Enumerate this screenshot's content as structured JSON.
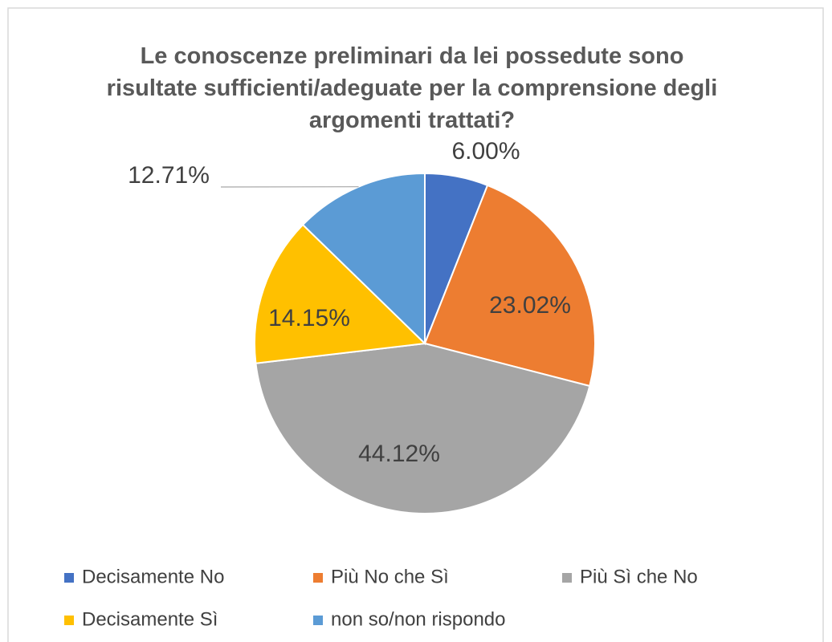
{
  "chart_data": {
    "type": "pie",
    "title": "Le conoscenze preliminari da lei possedute sono risultate sufficienti/adeguate per la comprensione degli argomenti trattati?",
    "categories": [
      "Decisamente No",
      "Più No che Sì",
      "Più Sì che No",
      "Decisamente Sì",
      "non so/non rispondo"
    ],
    "values": [
      6.0,
      23.02,
      44.12,
      14.15,
      12.71
    ],
    "value_labels": [
      "6.00%",
      "23.02%",
      "44.12%",
      "14.15%",
      "12.71%"
    ],
    "colors": [
      "#4472c4",
      "#ed7d31",
      "#a5a5a5",
      "#ffc000",
      "#5b9bd5"
    ],
    "legend": "bottom"
  }
}
